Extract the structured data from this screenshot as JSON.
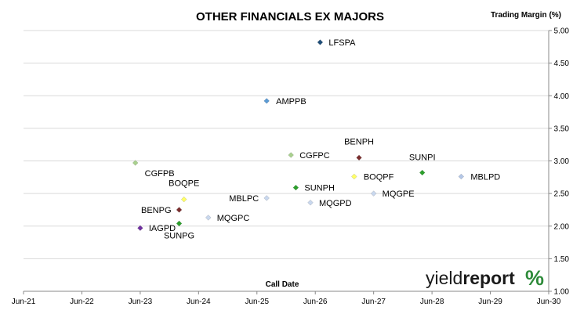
{
  "chart_data": {
    "type": "scatter",
    "title": "OTHER FINANCIALS EX MAJORS",
    "ylabel": "Trading Margin (%)",
    "xlabel": "Call Date",
    "xlim": [
      "2021-06",
      "2030-06"
    ],
    "ylim": [
      1.0,
      5.0
    ],
    "yticks": [
      "1.00",
      "1.50",
      "2.00",
      "2.50",
      "3.00",
      "3.50",
      "4.00",
      "4.50",
      "5.00"
    ],
    "xticks": [
      "Jun-21",
      "Jun-22",
      "Jun-23",
      "Jun-24",
      "Jun-25",
      "Jun-26",
      "Jun-27",
      "Jun-28",
      "Jun-29",
      "Jun-30"
    ],
    "grid": "horizontal",
    "points": [
      {
        "label": "LFSPA",
        "x": "2026-07",
        "y": 4.82,
        "color": "#1f4e79"
      },
      {
        "label": "AMPPB",
        "x": "2025-08",
        "y": 3.92,
        "color": "#5b9bd5"
      },
      {
        "label": "CGFPB",
        "x": "2023-05",
        "y": 2.97,
        "color": "#a9d18e"
      },
      {
        "label": "CGFPC",
        "x": "2026-01",
        "y": 3.09,
        "color": "#a9d18e"
      },
      {
        "label": "BENPH",
        "x": "2027-03",
        "y": 3.05,
        "color": "#7b2e2e"
      },
      {
        "label": "SUNPI",
        "x": "2028-04",
        "y": 2.82,
        "color": "#2ca02c"
      },
      {
        "label": "MBLPD",
        "x": "2028-12",
        "y": 2.76,
        "color": "#b4c7e7"
      },
      {
        "label": "BOQPF",
        "x": "2027-02",
        "y": 2.76,
        "color": "#ffff66"
      },
      {
        "label": "SUNPH",
        "x": "2026-02",
        "y": 2.59,
        "color": "#2ca02c"
      },
      {
        "label": "MQGPE",
        "x": "2027-06",
        "y": 2.5,
        "color": "#c9d8ee"
      },
      {
        "label": "MBLPC",
        "x": "2025-08",
        "y": 2.43,
        "color": "#c9d8ee"
      },
      {
        "label": "MQGPD",
        "x": "2026-05",
        "y": 2.36,
        "color": "#c9d8ee"
      },
      {
        "label": "BOQPE",
        "x": "2024-03",
        "y": 2.41,
        "color": "#ffff66"
      },
      {
        "label": "BENPG",
        "x": "2024-02",
        "y": 2.25,
        "color": "#7b2e2e"
      },
      {
        "label": "MQGPC",
        "x": "2024-08",
        "y": 2.13,
        "color": "#c9d8ee"
      },
      {
        "label": "SUNPG",
        "x": "2024-02",
        "y": 2.04,
        "color": "#2ca02c"
      },
      {
        "label": "IAGPD",
        "x": "2023-06",
        "y": 1.97,
        "color": "#7030a0"
      }
    ]
  },
  "logo": {
    "part1": "yield",
    "part2": "report",
    "part3": "%",
    "colors": {
      "text": "#1a1a1a",
      "pct_top": "#2e8b3a",
      "pct_bottom": "#c0392b"
    }
  }
}
